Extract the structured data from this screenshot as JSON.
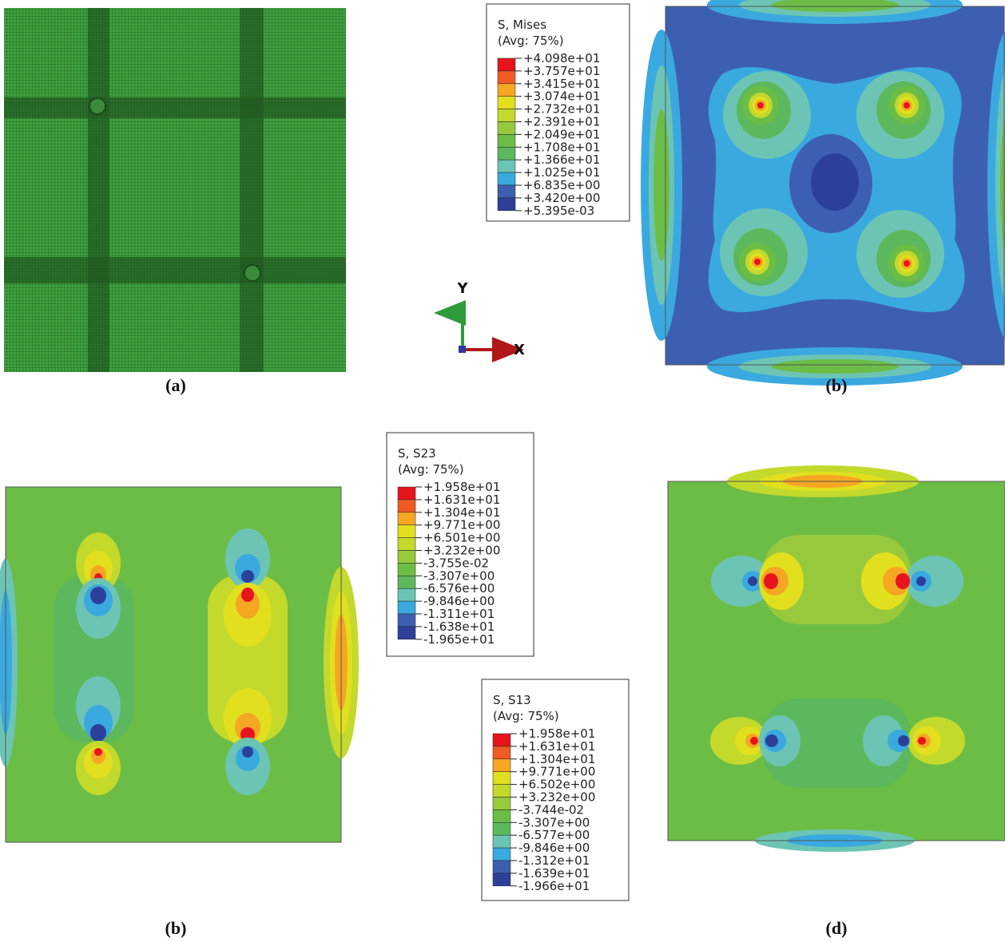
{
  "panels": [
    {
      "label": "(a)"
    },
    {
      "label": "(b)"
    },
    {
      "label": "(b)"
    },
    {
      "label": "(d)"
    }
  ],
  "triad": {
    "y": "Y",
    "x": "X"
  },
  "legend_colors": [
    "#e8141c",
    "#f05a23",
    "#f5a623",
    "#e2e01e",
    "#c3d92c",
    "#98c93c",
    "#6cbd45",
    "#5cb85c",
    "#6cc5b4",
    "#3aa9e0",
    "#3d5fb2",
    "#2c409a"
  ],
  "legends": [
    {
      "title": "S, Mises",
      "subtitle": "(Avg: 75%)",
      "labels": [
        "+4.098e+01",
        "+3.757e+01",
        "+3.415e+01",
        "+3.074e+01",
        "+2.732e+01",
        "+2.391e+01",
        "+2.049e+01",
        "+1.708e+01",
        "+1.366e+01",
        "+1.025e+01",
        "+6.835e+00",
        "+3.420e+00",
        "+5.395e-03"
      ]
    },
    {
      "title": "S, S23",
      "subtitle": "(Avg: 75%)",
      "labels": [
        "+1.958e+01",
        "+1.631e+01",
        "+1.304e+01",
        "+9.771e+00",
        "+6.501e+00",
        "+3.232e+00",
        "-3.755e-02",
        "-3.307e+00",
        "-6.576e+00",
        "-9.846e+00",
        "-1.311e+01",
        "-1.638e+01",
        "-1.965e+01"
      ]
    },
    {
      "title": "S, S13",
      "subtitle": "(Avg: 75%)",
      "labels": [
        "+1.958e+01",
        "+1.631e+01",
        "+1.304e+01",
        "+9.771e+00",
        "+6.502e+00",
        "+3.232e+00",
        "-3.744e-02",
        "-3.307e+00",
        "-6.577e+00",
        "-9.846e+00",
        "-1.312e+01",
        "-1.639e+01",
        "-1.966e+01"
      ]
    }
  ]
}
